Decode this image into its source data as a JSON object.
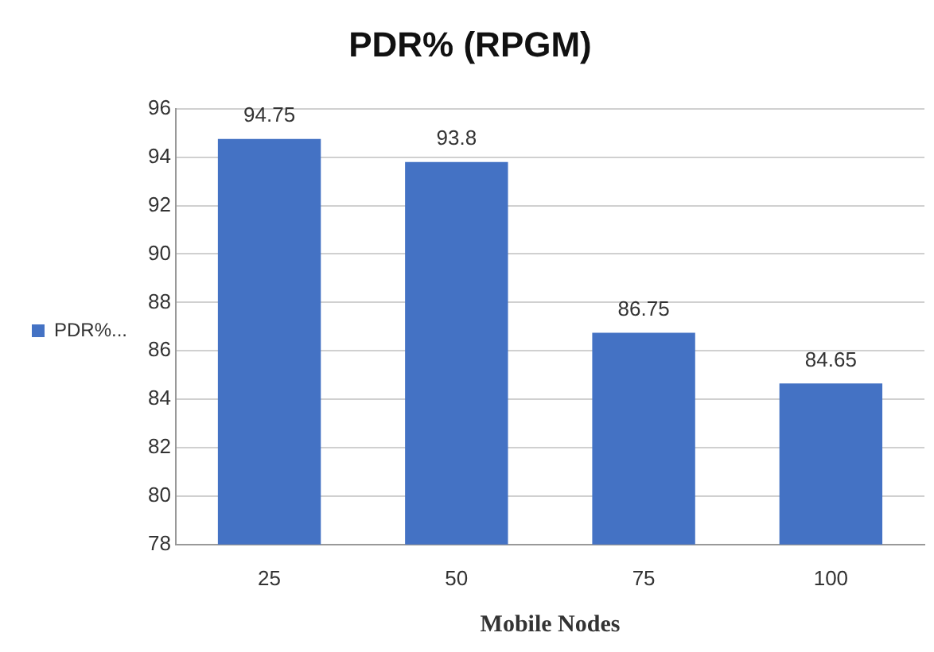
{
  "chart_data": {
    "type": "bar",
    "title": "PDR% (RPGM)",
    "xlabel": "Mobile Nodes",
    "categories": [
      "25",
      "50",
      "75",
      "100"
    ],
    "series": [
      {
        "name": "PDR%...",
        "color": "#4472c4",
        "values": [
          94.75,
          93.8,
          86.75,
          84.65
        ]
      }
    ],
    "ylim": [
      78,
      96
    ],
    "yticks": [
      78,
      80,
      82,
      84,
      86,
      88,
      90,
      92,
      94,
      96
    ],
    "grid": "y",
    "legend": "left",
    "data_labels": true
  }
}
